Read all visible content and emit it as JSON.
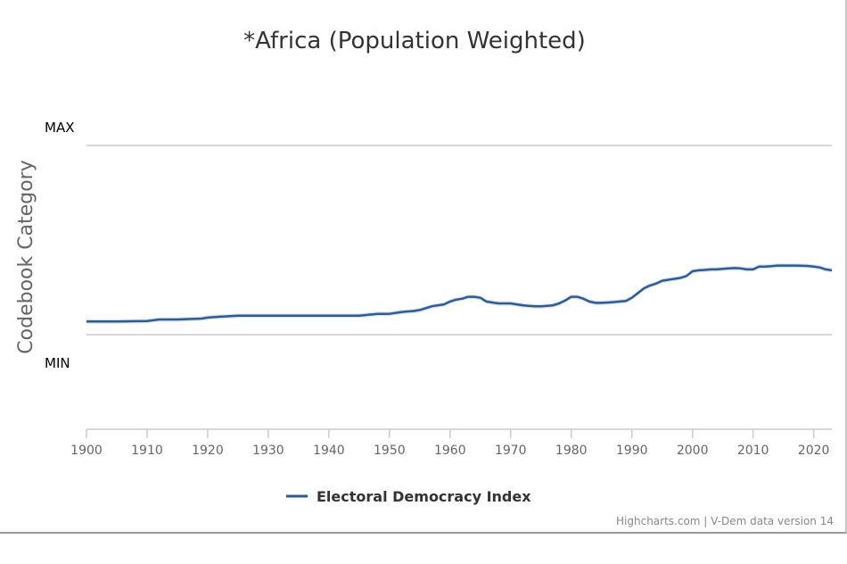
{
  "chart_data": {
    "type": "line",
    "title": "*Africa (Population Weighted)",
    "ylabel": "Codebook Category",
    "y_category_labels": {
      "top": "MAX",
      "bottom": "MIN"
    },
    "xlim": [
      1900,
      2023
    ],
    "x_ticks": [
      1900,
      1910,
      1920,
      1930,
      1940,
      1950,
      1960,
      1970,
      1980,
      1990,
      2000,
      2010,
      2020
    ],
    "series": [
      {
        "name": "Electoral Democracy Index",
        "color": "#2f5b92",
        "band_color": "#dbe5f1",
        "x": [
          1900,
          1905,
          1910,
          1912,
          1915,
          1919,
          1920,
          1922,
          1925,
          1930,
          1935,
          1940,
          1945,
          1948,
          1950,
          1952,
          1954,
          1955,
          1957,
          1958,
          1959,
          1960,
          1961,
          1962,
          1963,
          1964,
          1965,
          1966,
          1967,
          1968,
          1969,
          1970,
          1971,
          1972,
          1973,
          1974,
          1975,
          1976,
          1977,
          1978,
          1979,
          1980,
          1981,
          1982,
          1983,
          1984,
          1985,
          1986,
          1987,
          1988,
          1989,
          1990,
          1991,
          1992,
          1993,
          1994,
          1995,
          1996,
          1997,
          1998,
          1999,
          2000,
          2001,
          2002,
          2003,
          2004,
          2005,
          2006,
          2007,
          2008,
          2009,
          2010,
          2011,
          2012,
          2013,
          2014,
          2015,
          2016,
          2017,
          2018,
          2019,
          2020,
          2021,
          2022,
          2023
        ],
        "y": [
          0.07,
          0.07,
          0.072,
          0.08,
          0.08,
          0.085,
          0.09,
          0.095,
          0.1,
          0.1,
          0.1,
          0.1,
          0.1,
          0.11,
          0.11,
          0.12,
          0.125,
          0.13,
          0.15,
          0.155,
          0.16,
          0.175,
          0.185,
          0.19,
          0.2,
          0.2,
          0.195,
          0.175,
          0.17,
          0.165,
          0.165,
          0.165,
          0.16,
          0.155,
          0.152,
          0.15,
          0.15,
          0.152,
          0.155,
          0.165,
          0.18,
          0.2,
          0.2,
          0.19,
          0.175,
          0.168,
          0.168,
          0.17,
          0.172,
          0.175,
          0.178,
          0.195,
          0.22,
          0.245,
          0.26,
          0.27,
          0.285,
          0.29,
          0.295,
          0.3,
          0.31,
          0.335,
          0.34,
          0.342,
          0.345,
          0.345,
          0.348,
          0.35,
          0.352,
          0.35,
          0.345,
          0.345,
          0.36,
          0.36,
          0.362,
          0.365,
          0.365,
          0.365,
          0.365,
          0.364,
          0.363,
          0.36,
          0.355,
          0.345,
          0.34
        ],
        "band": 0.012
      }
    ],
    "grid": true,
    "legend_position": "bottom-center"
  },
  "credits": "Highcharts.com | V-Dem data version 14"
}
